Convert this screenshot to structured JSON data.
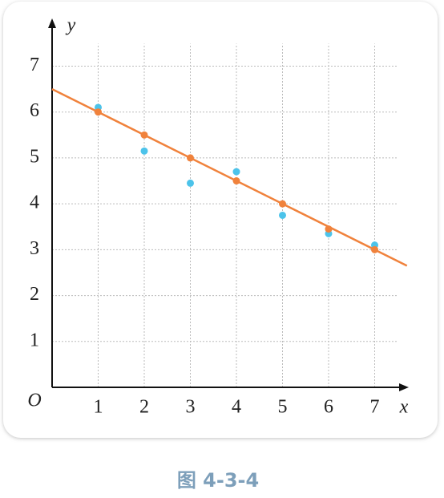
{
  "chart_data": {
    "type": "scatter",
    "x_label": "x",
    "y_label": "y",
    "origin_label": "O",
    "caption": "图 4-3-4",
    "xlim": [
      0,
      7.6
    ],
    "ylim": [
      0,
      7.9
    ],
    "xticks": [
      1,
      2,
      3,
      4,
      5,
      6,
      7
    ],
    "yticks": [
      1,
      2,
      3,
      4,
      5,
      6,
      7
    ],
    "grid": true,
    "series": [
      {
        "type": "scatter",
        "color": "#4cc3ea",
        "x": [
          1,
          2,
          3,
          4,
          5,
          6,
          7
        ],
        "values": [
          6.1,
          5.15,
          4.45,
          4.7,
          3.75,
          3.35,
          3.1
        ]
      },
      {
        "type": "scatter",
        "color": "#f0823c",
        "x": [
          1,
          2,
          3,
          4,
          5,
          6,
          7
        ],
        "values": [
          6,
          5.5,
          5,
          4.5,
          4,
          3.45,
          3
        ]
      },
      {
        "type": "line",
        "color": "#f0823c",
        "x": [
          0,
          7.7
        ],
        "values": [
          6.5,
          2.65
        ]
      }
    ]
  }
}
